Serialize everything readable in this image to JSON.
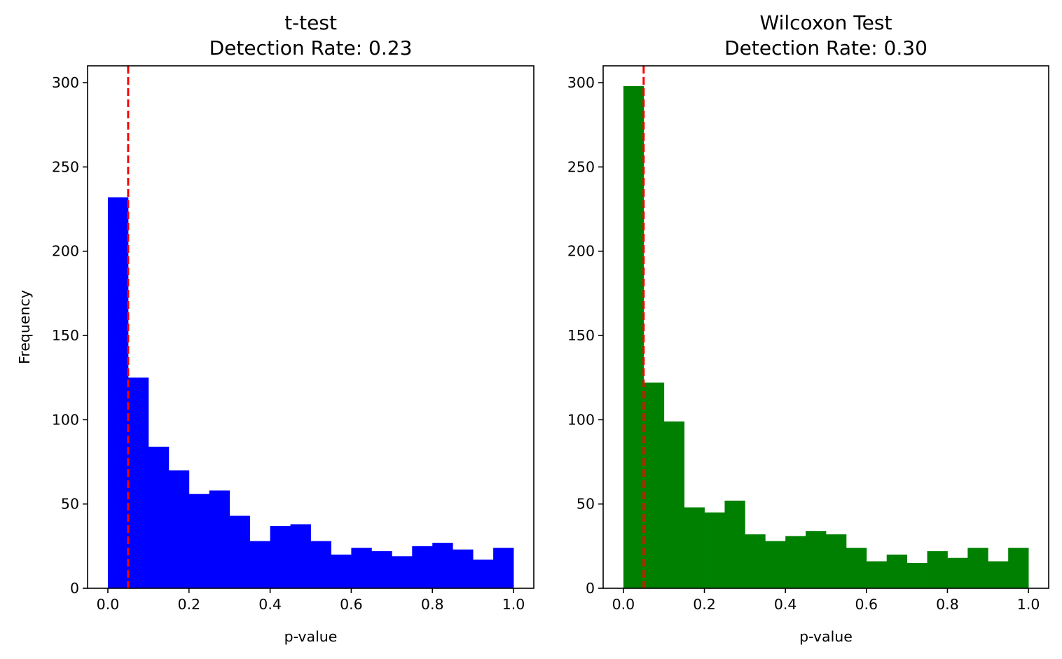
{
  "chart_data": [
    {
      "type": "bar",
      "title": "t-test",
      "subtitle": "Detection Rate: 0.23",
      "xlabel": "p-value",
      "ylabel": "Frequency",
      "xlim": [
        -0.05,
        1.05
      ],
      "ylim": [
        0,
        310
      ],
      "xticks": [
        "0.0",
        "0.2",
        "0.4",
        "0.6",
        "0.8",
        "1.0"
      ],
      "xtick_values": [
        0,
        0.2,
        0.4,
        0.6,
        0.8,
        1.0
      ],
      "yticks": [
        "0",
        "50",
        "100",
        "150",
        "200",
        "250",
        "300"
      ],
      "ytick_values": [
        0,
        50,
        100,
        150,
        200,
        250,
        300
      ],
      "bin_edges": [
        0,
        0.05,
        0.1,
        0.15,
        0.2,
        0.25,
        0.3,
        0.35,
        0.4,
        0.45,
        0.5,
        0.55,
        0.6,
        0.65,
        0.7,
        0.75,
        0.8,
        0.85,
        0.9,
        0.95,
        1.0
      ],
      "values": [
        232,
        125,
        84,
        70,
        56,
        58,
        43,
        28,
        37,
        38,
        28,
        20,
        24,
        22,
        19,
        25,
        27,
        23,
        17,
        24
      ],
      "bar_color": "#0000ff",
      "threshold": 0.05,
      "threshold_color": "#ff0000",
      "grid": false
    },
    {
      "type": "bar",
      "title": "Wilcoxon Test",
      "subtitle": "Detection Rate: 0.30",
      "xlabel": "p-value",
      "ylabel": "",
      "xlim": [
        -0.05,
        1.05
      ],
      "ylim": [
        0,
        310
      ],
      "xticks": [
        "0.0",
        "0.2",
        "0.4",
        "0.6",
        "0.8",
        "1.0"
      ],
      "xtick_values": [
        0,
        0.2,
        0.4,
        0.6,
        0.8,
        1.0
      ],
      "yticks": [
        "0",
        "50",
        "100",
        "150",
        "200",
        "250",
        "300"
      ],
      "ytick_values": [
        0,
        50,
        100,
        150,
        200,
        250,
        300
      ],
      "bin_edges": [
        0,
        0.05,
        0.1,
        0.15,
        0.2,
        0.25,
        0.3,
        0.35,
        0.4,
        0.45,
        0.5,
        0.55,
        0.6,
        0.65,
        0.7,
        0.75,
        0.8,
        0.85,
        0.9,
        0.95,
        1.0
      ],
      "values": [
        298,
        122,
        99,
        48,
        45,
        52,
        32,
        28,
        31,
        34,
        32,
        24,
        16,
        20,
        15,
        22,
        18,
        24,
        16,
        24
      ],
      "bar_color": "#008000",
      "threshold": 0.05,
      "threshold_color": "#ff0000",
      "grid": false
    }
  ]
}
